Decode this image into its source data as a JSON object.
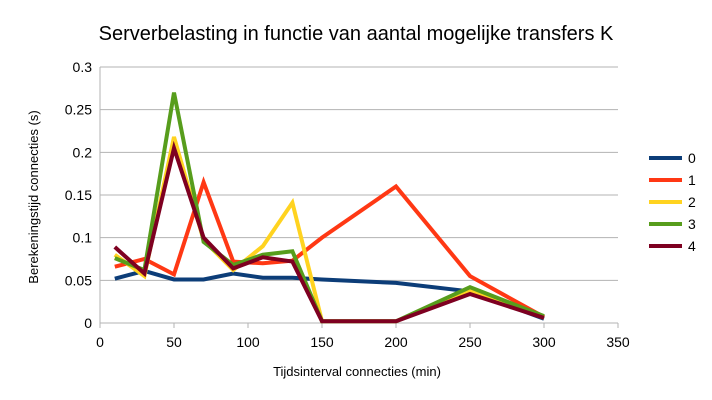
{
  "chart_data": {
    "type": "line",
    "title": "Serverbelasting in functie van aantal mogelijke transfers K",
    "xlabel": "Tijdsinterval connecties (min)",
    "ylabel": "Berekeningstijd connecties (s)",
    "xlim": [
      0,
      350
    ],
    "ylim": [
      0,
      0.3
    ],
    "xticks": [
      0,
      50,
      100,
      150,
      200,
      250,
      300,
      350
    ],
    "yticks": [
      0,
      0.05,
      0.1,
      0.15,
      0.2,
      0.25,
      0.3
    ],
    "xtick_labels": [
      "0",
      "50",
      "100",
      "150",
      "200",
      "250",
      "300",
      "350"
    ],
    "ytick_labels": [
      "0",
      "0.05",
      "0.1",
      "0.15",
      "0.2",
      "0.25",
      "0.3"
    ],
    "grid": "horizontal",
    "legend_position": "right",
    "x": [
      10,
      30,
      50,
      70,
      90,
      110,
      130,
      150,
      200,
      250,
      300
    ],
    "series": [
      {
        "name": "0",
        "color": "#0c3d78",
        "values": [
          0.052,
          0.061,
          0.051,
          0.051,
          0.058,
          0.053,
          0.053,
          0.051,
          0.047,
          0.037,
          0.005
        ]
      },
      {
        "name": "1",
        "color": "#ff3814",
        "values": [
          0.066,
          0.075,
          0.057,
          0.165,
          0.072,
          0.07,
          0.073,
          0.1,
          0.16,
          0.055,
          0.007
        ]
      },
      {
        "name": "2",
        "color": "#ffd320",
        "values": [
          0.08,
          0.055,
          0.218,
          0.097,
          0.062,
          0.09,
          0.141,
          0.002,
          0.002,
          0.038,
          0.006
        ]
      },
      {
        "name": "3",
        "color": "#579d1c",
        "values": [
          0.076,
          0.062,
          0.27,
          0.095,
          0.068,
          0.08,
          0.084,
          0.002,
          0.002,
          0.042,
          0.008
        ]
      },
      {
        "name": "4",
        "color": "#7e0021",
        "values": [
          0.089,
          0.058,
          0.205,
          0.1,
          0.064,
          0.077,
          0.072,
          0.002,
          0.002,
          0.034,
          0.006
        ]
      }
    ]
  }
}
